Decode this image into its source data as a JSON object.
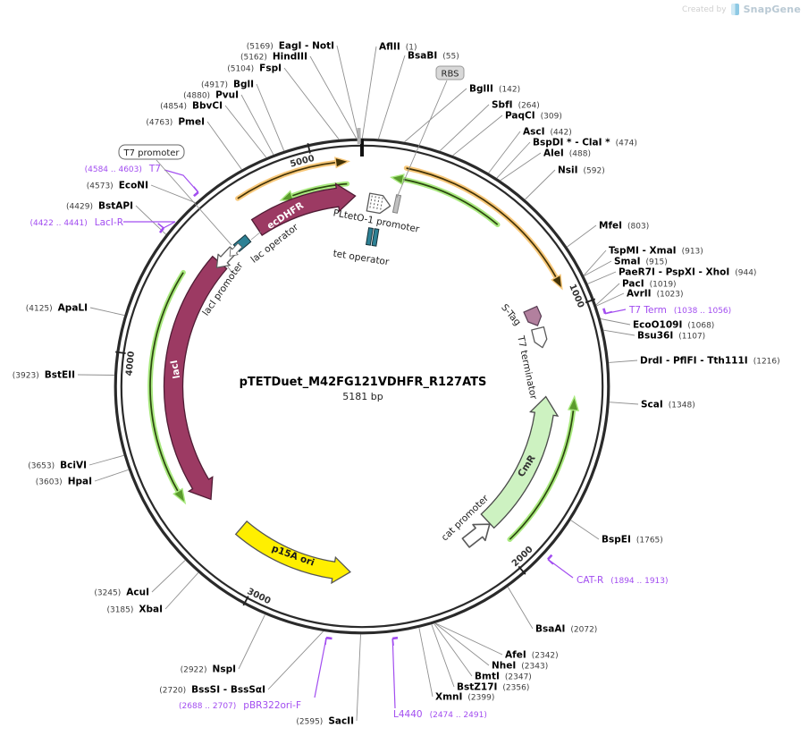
{
  "watermark": {
    "created_by": "Created by",
    "brand": "SnapGene"
  },
  "plasmid": {
    "name": "pTETDuet_M42FG121VDHFR_R127ATS",
    "size_label": "5181 bp",
    "length_bp": 5181
  },
  "ticks": [
    {
      "label": "1000",
      "bp": 1000
    },
    {
      "label": "2000",
      "bp": 2000
    },
    {
      "label": "3000",
      "bp": 3000
    },
    {
      "label": "4000",
      "bp": 4000
    },
    {
      "label": "5000",
      "bp": 5000
    }
  ],
  "sites": [
    {
      "name": "AflII",
      "pos": "(1)",
      "bp": 1
    },
    {
      "name": "BsaBI",
      "pos": "(55)",
      "bp": 55
    },
    {
      "name": "BglII",
      "pos": "(142)",
      "bp": 142
    },
    {
      "name": "SbfI",
      "pos": "(264)",
      "bp": 264
    },
    {
      "name": "PaqCI",
      "pos": "(309)",
      "bp": 309
    },
    {
      "name": "AscI",
      "pos": "(442)",
      "bp": 442
    },
    {
      "name": "BspDI * - ClaI *",
      "pos": "(474)",
      "bp": 474
    },
    {
      "name": "AleI",
      "pos": "(488)",
      "bp": 488
    },
    {
      "name": "NsiI",
      "pos": "(592)",
      "bp": 592
    },
    {
      "name": "MfeI",
      "pos": "(803)",
      "bp": 803
    },
    {
      "name": "TspMI - XmaI",
      "pos": "(913)",
      "bp": 913
    },
    {
      "name": "SmaI",
      "pos": "(915)",
      "bp": 915
    },
    {
      "name": "PaeR7I - PspXI - XhoI",
      "pos": "(944)",
      "bp": 944
    },
    {
      "name": "PacI",
      "pos": "(1019)",
      "bp": 1019
    },
    {
      "name": "AvrII",
      "pos": "(1023)",
      "bp": 1023
    },
    {
      "name": "EcoO109I",
      "pos": "(1068)",
      "bp": 1068
    },
    {
      "name": "Bsu36I",
      "pos": "(1107)",
      "bp": 1107
    },
    {
      "name": "DrdI - PflFI - Tth111I",
      "pos": "(1216)",
      "bp": 1216
    },
    {
      "name": "ScaI",
      "pos": "(1348)",
      "bp": 1348
    },
    {
      "name": "BspEI",
      "pos": "(1765)",
      "bp": 1765
    },
    {
      "name": "BsaAI",
      "pos": "(2072)",
      "bp": 2072
    },
    {
      "name": "AfeI",
      "pos": "(2342)",
      "bp": 2342
    },
    {
      "name": "NheI",
      "pos": "(2343)",
      "bp": 2343
    },
    {
      "name": "BmtI",
      "pos": "(2347)",
      "bp": 2347
    },
    {
      "name": "BstZ17I",
      "pos": "(2356)",
      "bp": 2356
    },
    {
      "name": "XmnI",
      "pos": "(2399)",
      "bp": 2399
    },
    {
      "name": "SacII",
      "pos": "(2595)",
      "bp": 2595
    },
    {
      "name": "BssSI - BssSαI",
      "pos": "(2720)",
      "bp": 2720
    },
    {
      "name": "NspI",
      "pos": "(2922)",
      "bp": 2922
    },
    {
      "name": "XbaI",
      "pos": "(3185)",
      "bp": 3185
    },
    {
      "name": "AcuI",
      "pos": "(3245)",
      "bp": 3245
    },
    {
      "name": "HpaI",
      "pos": "(3603)",
      "bp": 3603
    },
    {
      "name": "BciVI",
      "pos": "(3653)",
      "bp": 3653
    },
    {
      "name": "BstEII",
      "pos": "(3923)",
      "bp": 3923
    },
    {
      "name": "ApaLI",
      "pos": "(4125)",
      "bp": 4125
    },
    {
      "name": "BstAPI",
      "pos": "(4429)",
      "bp": 4429
    },
    {
      "name": "EcoNI",
      "pos": "(4573)",
      "bp": 4573
    },
    {
      "name": "PmeI",
      "pos": "(4763)",
      "bp": 4763
    },
    {
      "name": "BbvCI",
      "pos": "(4854)",
      "bp": 4854
    },
    {
      "name": "PvuI",
      "pos": "(4880)",
      "bp": 4880
    },
    {
      "name": "BglI",
      "pos": "(4917)",
      "bp": 4917
    },
    {
      "name": "FspI",
      "pos": "(5104)",
      "bp": 5104
    },
    {
      "name": "HindIII",
      "pos": "(5162)",
      "bp": 5162
    },
    {
      "name": "EagI - NotI",
      "pos": "(5169)",
      "bp": 5169
    }
  ],
  "primers": [
    {
      "name": "T7",
      "range": "(4584 .. 4603)",
      "start": 4584,
      "end": 4603
    },
    {
      "name": "LacI-R",
      "range": "(4422 .. 4441)",
      "start": 4422,
      "end": 4441
    },
    {
      "name": "pBR322ori-F",
      "range": "(2688 .. 2707)",
      "start": 2688,
      "end": 2707
    },
    {
      "name": "L4440",
      "range": "(2474 .. 2491)",
      "start": 2474,
      "end": 2491
    },
    {
      "name": "CAT-R",
      "range": "(1894 .. 1913)",
      "start": 1894,
      "end": 1913
    },
    {
      "name": "T7 Term",
      "range": "(1038 .. 1056)",
      "start": 1038,
      "end": 1056
    }
  ],
  "features": {
    "ecdhfr": "ecDHFR",
    "laci": "lacI",
    "p15a": "p15A ori",
    "cmr": "CmR",
    "pltet": "PLtetO-1 promoter",
    "tet_op": "tet operator",
    "lac_op": "lac operator",
    "laci_prom": "lacI promoter",
    "cat_prom": "cat promoter",
    "t7_terminator": "T7 terminator",
    "stag": "S-Tag",
    "rbs": "RBS",
    "t7_promoter": "T7 promoter"
  },
  "colors": {
    "ring": "#2a2a2a",
    "maroon": "#9c3a63",
    "maroon_edge": "#4f1c34",
    "yellow": "#ffef00",
    "cmr_fill": "#cdf2c1",
    "orf_green_light": "#a9e97f",
    "orf_green_dark": "#2c470f",
    "orange_light": "#f8c87a",
    "orange_dark": "#433307",
    "teal": "#2d8195",
    "plum": "#b2809e",
    "primer_purple": "#a24df0",
    "leader_gray": "#8f8f8f"
  }
}
